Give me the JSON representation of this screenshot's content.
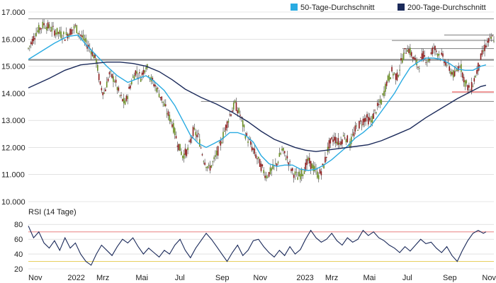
{
  "colors": {
    "ma50": "#29abe2",
    "ma200": "#1b2a5a",
    "candle_up": "#6b8e23",
    "candle_down": "#8b1a1a",
    "wick": "#555555",
    "level_line": "#808080",
    "red_line": "#e03030",
    "rsi_line": "#1b2a5a",
    "rsi_upper": "#e88080",
    "rsi_lower": "#e8d060",
    "grid": "#d0d0d0"
  },
  "chart_data": [
    {
      "type": "candlestick",
      "title": "",
      "legend": [
        "50-Tage-Durchschnitt",
        "200-Tage-Durchschnitt"
      ],
      "legend_placement": "top-right",
      "ylim": [
        10000,
        17000
      ],
      "yticks": [
        "17.000",
        "16.000",
        "15.000",
        "14.000",
        "13.000",
        "12.000",
        "11.000",
        "10.000"
      ],
      "ytick_values": [
        17000,
        16000,
        15000,
        14000,
        13000,
        12000,
        11000,
        10000
      ],
      "grid": true,
      "close_points": [
        [
          0,
          15650
        ],
        [
          6,
          16250
        ],
        [
          12,
          16550
        ],
        [
          20,
          16300
        ],
        [
          28,
          16100
        ],
        [
          36,
          16450
        ],
        [
          42,
          16000
        ],
        [
          48,
          15600
        ],
        [
          52,
          15200
        ],
        [
          55,
          14300
        ],
        [
          58,
          14000
        ],
        [
          62,
          14700
        ],
        [
          66,
          14500
        ],
        [
          70,
          13900
        ],
        [
          74,
          13600
        ],
        [
          78,
          14300
        ],
        [
          82,
          14800
        ],
        [
          86,
          14600
        ],
        [
          90,
          15050
        ],
        [
          94,
          14500
        ],
        [
          98,
          14200
        ],
        [
          102,
          13800
        ],
        [
          106,
          13300
        ],
        [
          110,
          12900
        ],
        [
          114,
          12200
        ],
        [
          118,
          11700
        ],
        [
          122,
          11900
        ],
        [
          126,
          12600
        ],
        [
          130,
          12400
        ],
        [
          134,
          11600
        ],
        [
          138,
          11200
        ],
        [
          142,
          11500
        ],
        [
          146,
          12000
        ],
        [
          150,
          12600
        ],
        [
          154,
          13200
        ],
        [
          158,
          13600
        ],
        [
          162,
          13200
        ],
        [
          166,
          12500
        ],
        [
          170,
          12100
        ],
        [
          174,
          11700
        ],
        [
          178,
          11300
        ],
        [
          182,
          10950
        ],
        [
          186,
          11150
        ],
        [
          190,
          11400
        ],
        [
          194,
          11900
        ],
        [
          198,
          11600
        ],
        [
          202,
          11100
        ],
        [
          206,
          10900
        ],
        [
          210,
          11100
        ],
        [
          214,
          11500
        ],
        [
          218,
          11250
        ],
        [
          222,
          10950
        ],
        [
          226,
          11350
        ],
        [
          230,
          12100
        ],
        [
          234,
          12350
        ],
        [
          238,
          12150
        ],
        [
          242,
          12450
        ],
        [
          246,
          12100
        ],
        [
          250,
          12650
        ],
        [
          254,
          12900
        ],
        [
          258,
          13100
        ],
        [
          262,
          12950
        ],
        [
          266,
          13400
        ],
        [
          270,
          13700
        ],
        [
          274,
          14400
        ],
        [
          278,
          14800
        ],
        [
          282,
          14600
        ],
        [
          286,
          15300
        ],
        [
          290,
          15700
        ],
        [
          294,
          15350
        ],
        [
          298,
          15000
        ],
        [
          302,
          15400
        ],
        [
          306,
          15200
        ],
        [
          310,
          15700
        ],
        [
          314,
          15450
        ],
        [
          318,
          15250
        ],
        [
          322,
          14900
        ],
        [
          326,
          14650
        ],
        [
          330,
          15100
        ],
        [
          334,
          14400
        ],
        [
          338,
          14100
        ],
        [
          342,
          14650
        ],
        [
          346,
          15300
        ],
        [
          350,
          15800
        ],
        [
          354,
          16000
        ],
        [
          356,
          16050
        ]
      ],
      "series": [
        {
          "name": "50-Tage-Durchschnitt",
          "points": [
            [
              0,
              15250
            ],
            [
              10,
              15550
            ],
            [
              20,
              15850
            ],
            [
              30,
              16100
            ],
            [
              38,
              16150
            ],
            [
              44,
              15800
            ],
            [
              52,
              15400
            ],
            [
              60,
              15000
            ],
            [
              68,
              14650
            ],
            [
              76,
              14400
            ],
            [
              84,
              14550
            ],
            [
              90,
              14650
            ],
            [
              96,
              14450
            ],
            [
              104,
              14100
            ],
            [
              112,
              13550
            ],
            [
              118,
              13000
            ],
            [
              124,
              12450
            ],
            [
              130,
              12150
            ],
            [
              136,
              12000
            ],
            [
              142,
              12150
            ],
            [
              148,
              12300
            ],
            [
              154,
              12550
            ],
            [
              160,
              12550
            ],
            [
              166,
              12450
            ],
            [
              172,
              12200
            ],
            [
              178,
              11700
            ],
            [
              184,
              11400
            ],
            [
              190,
              11300
            ],
            [
              196,
              11350
            ],
            [
              202,
              11350
            ],
            [
              208,
              11200
            ],
            [
              214,
              11150
            ],
            [
              220,
              11200
            ],
            [
              226,
              11350
            ],
            [
              232,
              11550
            ],
            [
              238,
              11800
            ],
            [
              244,
              12050
            ],
            [
              250,
              12350
            ],
            [
              256,
              12550
            ],
            [
              262,
              12800
            ],
            [
              268,
              13200
            ],
            [
              274,
              13600
            ],
            [
              280,
              14000
            ],
            [
              286,
              14500
            ],
            [
              292,
              14950
            ],
            [
              298,
              15150
            ],
            [
              304,
              15300
            ],
            [
              310,
              15300
            ],
            [
              316,
              15250
            ],
            [
              322,
              15100
            ],
            [
              328,
              14900
            ],
            [
              334,
              14850
            ],
            [
              340,
              14850
            ],
            [
              346,
              15000
            ],
            [
              350,
              15050
            ]
          ]
        },
        {
          "name": "200-Tage-Durchschnitt",
          "points": [
            [
              0,
              14200
            ],
            [
              16,
              14550
            ],
            [
              28,
              14850
            ],
            [
              40,
              15050
            ],
            [
              50,
              15100
            ],
            [
              60,
              15150
            ],
            [
              70,
              15150
            ],
            [
              80,
              15100
            ],
            [
              90,
              15000
            ],
            [
              100,
              14800
            ],
            [
              110,
              14500
            ],
            [
              120,
              14150
            ],
            [
              132,
              13850
            ],
            [
              144,
              13600
            ],
            [
              156,
              13300
            ],
            [
              168,
              12950
            ],
            [
              178,
              12600
            ],
            [
              188,
              12300
            ],
            [
              196,
              12150
            ],
            [
              204,
              12000
            ],
            [
              212,
              11900
            ],
            [
              220,
              11850
            ],
            [
              228,
              11900
            ],
            [
              236,
              11950
            ],
            [
              244,
              12000
            ],
            [
              252,
              12050
            ],
            [
              260,
              12100
            ],
            [
              270,
              12250
            ],
            [
              280,
              12450
            ],
            [
              292,
              12700
            ],
            [
              304,
              13100
            ],
            [
              316,
              13450
            ],
            [
              328,
              13800
            ],
            [
              338,
              14050
            ],
            [
              346,
              14250
            ],
            [
              350,
              14300
            ]
          ]
        }
      ],
      "horizontal_levels": [
        {
          "value": 16750,
          "x_start": 0,
          "x_end": 356,
          "color": "level_line"
        },
        {
          "value": 16150,
          "x_start": 318,
          "x_end": 356,
          "color": "level_line"
        },
        {
          "value": 15950,
          "x_start": 278,
          "x_end": 356,
          "color": "level_line"
        },
        {
          "value": 15650,
          "x_start": 286,
          "x_end": 356,
          "color": "level_line"
        },
        {
          "value": 15250,
          "x_start": 0,
          "x_end": 356,
          "color": "level_line"
        },
        {
          "value": 15220,
          "x_start": 0,
          "x_end": 356,
          "color": "level_line"
        },
        {
          "value": 14050,
          "x_start": 324,
          "x_end": 356,
          "color": "red_line"
        },
        {
          "value": 13700,
          "x_start": 132,
          "x_end": 356,
          "color": "level_line"
        }
      ]
    },
    {
      "type": "line",
      "title": "RSI (14 Tage)",
      "ylim": [
        20,
        85
      ],
      "yticks": [
        "80",
        "60",
        "40",
        "20"
      ],
      "ytick_values": [
        80,
        60,
        40,
        20
      ],
      "upper_line": 70,
      "lower_line": 30,
      "series": [
        {
          "name": "RSI (14 Tage)",
          "points": [
            [
              0,
              78
            ],
            [
              4,
              62
            ],
            [
              8,
              70
            ],
            [
              12,
              55
            ],
            [
              16,
              48
            ],
            [
              20,
              58
            ],
            [
              24,
              45
            ],
            [
              28,
              62
            ],
            [
              32,
              48
            ],
            [
              36,
              55
            ],
            [
              40,
              40
            ],
            [
              44,
              30
            ],
            [
              48,
              25
            ],
            [
              52,
              40
            ],
            [
              56,
              52
            ],
            [
              60,
              45
            ],
            [
              64,
              38
            ],
            [
              68,
              50
            ],
            [
              72,
              60
            ],
            [
              76,
              55
            ],
            [
              80,
              62
            ],
            [
              84,
              50
            ],
            [
              88,
              40
            ],
            [
              92,
              48
            ],
            [
              96,
              42
            ],
            [
              100,
              36
            ],
            [
              104,
              45
            ],
            [
              108,
              40
            ],
            [
              112,
              52
            ],
            [
              116,
              60
            ],
            [
              120,
              45
            ],
            [
              124,
              35
            ],
            [
              128,
              48
            ],
            [
              132,
              58
            ],
            [
              136,
              68
            ],
            [
              140,
              60
            ],
            [
              144,
              50
            ],
            [
              148,
              40
            ],
            [
              152,
              30
            ],
            [
              156,
              42
            ],
            [
              160,
              52
            ],
            [
              164,
              38
            ],
            [
              168,
              45
            ],
            [
              172,
              58
            ],
            [
              176,
              60
            ],
            [
              180,
              50
            ],
            [
              184,
              42
            ],
            [
              188,
              36
            ],
            [
              192,
              45
            ],
            [
              196,
              38
            ],
            [
              200,
              50
            ],
            [
              204,
              40
            ],
            [
              208,
              46
            ],
            [
              212,
              60
            ],
            [
              216,
              72
            ],
            [
              220,
              62
            ],
            [
              224,
              56
            ],
            [
              228,
              60
            ],
            [
              232,
              68
            ],
            [
              236,
              58
            ],
            [
              240,
              52
            ],
            [
              244,
              62
            ],
            [
              248,
              56
            ],
            [
              252,
              60
            ],
            [
              256,
              72
            ],
            [
              260,
              65
            ],
            [
              264,
              70
            ],
            [
              268,
              62
            ],
            [
              272,
              58
            ],
            [
              276,
              52
            ],
            [
              280,
              48
            ],
            [
              284,
              42
            ],
            [
              288,
              50
            ],
            [
              292,
              44
            ],
            [
              296,
              52
            ],
            [
              300,
              60
            ],
            [
              304,
              54
            ],
            [
              308,
              56
            ],
            [
              312,
              48
            ],
            [
              316,
              42
            ],
            [
              320,
              50
            ],
            [
              324,
              38
            ],
            [
              328,
              30
            ],
            [
              332,
              45
            ],
            [
              336,
              58
            ],
            [
              340,
              68
            ],
            [
              344,
              72
            ],
            [
              348,
              68
            ],
            [
              350,
              70
            ]
          ]
        }
      ]
    },
    {
      "type": "axis",
      "xlim": [
        0,
        356
      ],
      "x_tick_labels": [
        "Nov",
        "2022",
        "Mrz",
        "Mai",
        "Jul",
        "Sep",
        "Nov",
        "2023",
        "Mrz",
        "Mai",
        "Jul",
        "Sep",
        "Nov"
      ],
      "x_tick_positions": [
        0,
        30,
        52,
        82,
        112,
        143,
        172,
        205,
        227,
        256,
        286,
        317,
        347
      ]
    }
  ]
}
